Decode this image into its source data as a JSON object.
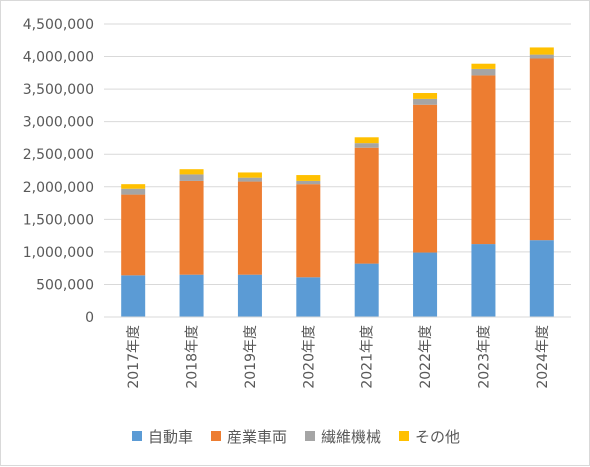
{
  "chart_data": {
    "type": "bar",
    "stacked": true,
    "categories": [
      "2017年度",
      "2018年度",
      "2019年度",
      "2020年度",
      "2021年度",
      "2022年度",
      "2023年度",
      "2024年度"
    ],
    "series": [
      {
        "name": "自動車",
        "color": "#5B9BD5",
        "values": [
          640000,
          650000,
          650000,
          610000,
          820000,
          990000,
          1120000,
          1180000
        ]
      },
      {
        "name": "産業車両",
        "color": "#ED7D31",
        "values": [
          1240000,
          1440000,
          1430000,
          1430000,
          1780000,
          2270000,
          2590000,
          2790000
        ]
      },
      {
        "name": "繊維機械",
        "color": "#A5A5A5",
        "values": [
          90000,
          100000,
          60000,
          50000,
          70000,
          90000,
          100000,
          60000
        ]
      },
      {
        "name": "その他",
        "color": "#FFC000",
        "values": [
          70000,
          80000,
          80000,
          90000,
          90000,
          90000,
          80000,
          110000
        ]
      }
    ],
    "ylim": [
      0,
      4500000
    ],
    "yticks": [
      0,
      500000,
      1000000,
      1500000,
      2000000,
      2500000,
      3000000,
      3500000,
      4000000,
      4500000
    ],
    "ytick_labels": [
      "0",
      "500,000",
      "1,000,000",
      "1,500,000",
      "2,000,000",
      "2,500,000",
      "3,000,000",
      "3,500,000",
      "4,000,000",
      "4,500,000"
    ],
    "grid": true,
    "legend_position": "bottom"
  }
}
